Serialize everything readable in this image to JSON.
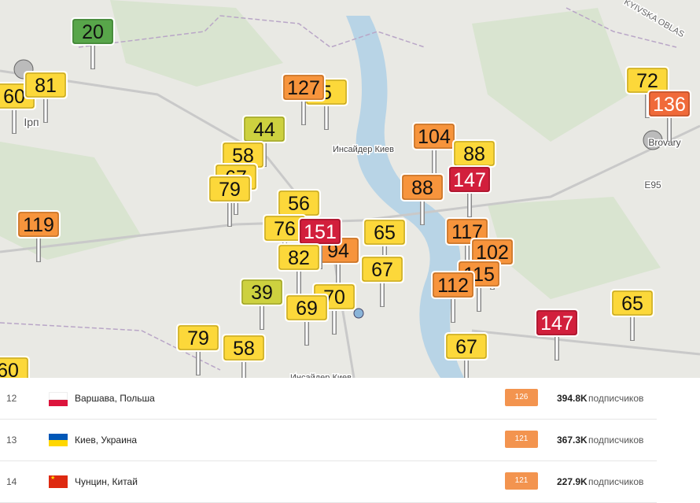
{
  "map": {
    "labels": [
      "Инсайдер Киев",
      "Инсайдер Киев",
      "KYIVSKA OBLAS",
      "Brovary",
      "E95",
      "Ірп"
    ],
    "markers": [
      {
        "value": 20,
        "color": "#58a64a"
      },
      {
        "value": 60,
        "color": "#fcd83a"
      },
      {
        "value": 81,
        "color": "#fcd83a"
      },
      {
        "value": 5,
        "color": "#fcd83a"
      },
      {
        "value": 127,
        "color": "#f7943c"
      },
      {
        "value": 44,
        "color": "#cdd13f"
      },
      {
        "value": 58,
        "color": "#fcd83a"
      },
      {
        "value": 67,
        "color": "#fcd83a"
      },
      {
        "value": 79,
        "color": "#fcd83a"
      },
      {
        "value": 119,
        "color": "#f7943c"
      },
      {
        "value": 56,
        "color": "#fcd83a"
      },
      {
        "value": 76,
        "color": "#fcd83a"
      },
      {
        "value": 94,
        "color": "#f7943c"
      },
      {
        "value": 151,
        "color": "#d21f3c"
      },
      {
        "value": 65,
        "color": "#fcd83a"
      },
      {
        "value": 82,
        "color": "#fcd83a"
      },
      {
        "value": 67,
        "color": "#fcd83a"
      },
      {
        "value": 39,
        "color": "#cdd13f"
      },
      {
        "value": 70,
        "color": "#fcd83a"
      },
      {
        "value": 69,
        "color": "#fcd83a"
      },
      {
        "value": 79,
        "color": "#fcd83a"
      },
      {
        "value": 58,
        "color": "#fcd83a"
      },
      {
        "value": 104,
        "color": "#f7943c"
      },
      {
        "value": 88,
        "color": "#f7943c"
      },
      {
        "value": 88,
        "color": "#fcd83a"
      },
      {
        "value": 147,
        "color": "#d21f3c"
      },
      {
        "value": 117,
        "color": "#f7943c"
      },
      {
        "value": 102,
        "color": "#f7943c"
      },
      {
        "value": 115,
        "color": "#f7943c"
      },
      {
        "value": 112,
        "color": "#f7943c"
      },
      {
        "value": 67,
        "color": "#fcd83a"
      },
      {
        "value": 147,
        "color": "#d21f3c"
      },
      {
        "value": 72,
        "color": "#fcd83a"
      },
      {
        "value": 136,
        "color": "#f06a3a"
      },
      {
        "value": 65,
        "color": "#fcd83a"
      },
      {
        "value": 60,
        "color": "#fcd83a"
      }
    ]
  },
  "table": {
    "rows": [
      {
        "rank": "12",
        "city": "Варшава, Польша",
        "aqi": "126",
        "followers": "394.8K",
        "unit": "подписчиков"
      },
      {
        "rank": "13",
        "city": "Киев, Украина",
        "aqi": "121",
        "followers": "367.3K",
        "unit": "подписчиков"
      },
      {
        "rank": "14",
        "city": "Чунцин, Китай",
        "aqi": "121",
        "followers": "227.9K",
        "unit": "подписчиков"
      }
    ]
  }
}
